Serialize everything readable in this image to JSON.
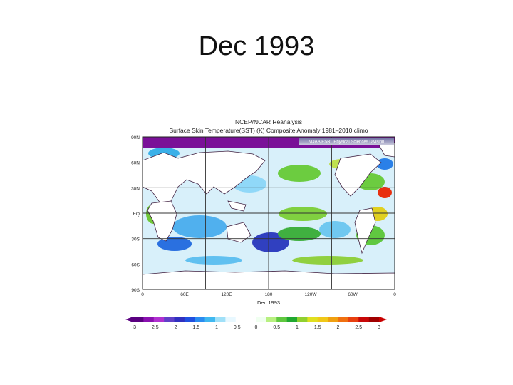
{
  "slide": {
    "title": "Dec 1993"
  },
  "figure": {
    "header_line1": "NCEP/NCAR Reanalysis",
    "header_line2": "Surface Skin Temperature(SST) (K) Composite Anomaly 1981–2010 climo",
    "credit": "NOAA/ESRL Physical Sciences Division",
    "date_label": "Dec 1993",
    "lat_labels": [
      "90N",
      "60N",
      "30N",
      "EQ",
      "30S",
      "60S",
      "90S"
    ],
    "lon_labels": [
      "0",
      "60E",
      "120E",
      "180",
      "120W",
      "60W",
      "0"
    ],
    "colorbar": {
      "tick_labels": [
        "−3",
        "−2.5",
        "−2",
        "−1.5",
        "−1",
        "−0.5",
        "0",
        "0.5",
        "1",
        "1.5",
        "2",
        "2.5",
        "3"
      ],
      "colors": [
        "#5a0080",
        "#8a10b0",
        "#b030d0",
        "#6040c8",
        "#3030c0",
        "#2050e0",
        "#2a8cf0",
        "#40b8f0",
        "#a0e0f8",
        "#e8f8ff",
        "#ffffff",
        "#ffffff",
        "#f0fff0",
        "#b8f080",
        "#60c840",
        "#20a830",
        "#90d030",
        "#e0e020",
        "#f0c818",
        "#f0a010",
        "#f07010",
        "#e84010",
        "#c80808",
        "#a00000"
      ],
      "color_neg_strong": "#5a0080",
      "color_pos_strong": "#c80000"
    }
  }
}
